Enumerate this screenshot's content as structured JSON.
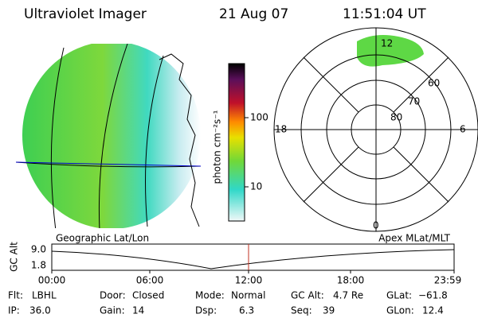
{
  "header": {
    "title": "Ultraviolet Imager",
    "date": "21 Aug 07",
    "time": "11:51:04 UT"
  },
  "colorbar": {
    "label": "photon cm⁻²s⁻¹",
    "ticks": [
      "100",
      "10"
    ]
  },
  "polar": {
    "mlt_labels": [
      "12",
      "18",
      "6",
      "0"
    ],
    "mlat_labels": [
      "60",
      "70",
      "80"
    ]
  },
  "timeline": {
    "left_title": "Geographic Lat/Lon",
    "right_title": "Apex MLat/MLT",
    "axis_label": "GC Alt",
    "alt_ticks": [
      "9.0",
      "1.8"
    ],
    "time_ticks": [
      "00:00",
      "06:00",
      "12:00",
      "18:00",
      "23:59"
    ]
  },
  "status": {
    "rows": [
      [
        {
          "label": "Flt:",
          "value": "LBHL"
        },
        {
          "label": "Door:",
          "value": "Closed"
        },
        {
          "label": "Mode:",
          "value": "Normal"
        },
        {
          "label": "GC Alt:",
          "value": "4.7 Re"
        },
        {
          "label": "GLat:",
          "value": "−61.8"
        }
      ],
      [
        {
          "label": "IP:",
          "value": "36.0"
        },
        {
          "label": "Gain:",
          "value": "14"
        },
        {
          "label": "Dsp:",
          "value": "6.3"
        },
        {
          "label": "Seq:",
          "value": "39"
        },
        {
          "label": "GLon:",
          "value": "12.4"
        }
      ]
    ]
  }
}
